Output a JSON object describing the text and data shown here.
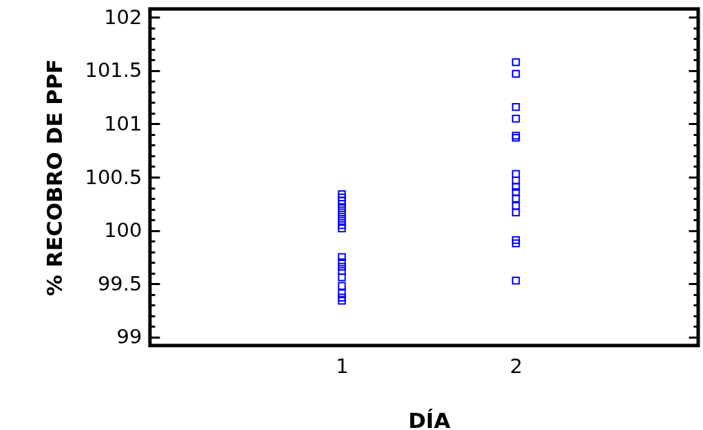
{
  "chart_data": {
    "type": "scatter",
    "xlabel": "DÍA",
    "ylabel": "% RECOBRO DE PPF",
    "categories": [
      "1",
      "2"
    ],
    "series": [
      {
        "color": "#0000ff",
        "x": [
          "1",
          "1",
          "1",
          "1",
          "1",
          "1",
          "1",
          "1",
          "1",
          "1",
          "1",
          "1",
          "1",
          "1",
          "1",
          "1",
          "1",
          "1",
          "1"
        ],
        "values": [
          100.34,
          100.31,
          100.28,
          100.25,
          100.21,
          100.17,
          100.13,
          100.09,
          100.05,
          100.02,
          99.75,
          99.7,
          99.66,
          99.62,
          99.56,
          99.48,
          99.41,
          99.37,
          99.34
        ]
      },
      {
        "color": "#0000ff",
        "x": [
          "2",
          "2",
          "2",
          "2",
          "2",
          "2",
          "2",
          "2",
          "2",
          "2",
          "2",
          "2",
          "2",
          "2",
          "2",
          "2"
        ],
        "values": [
          101.58,
          101.47,
          101.16,
          101.05,
          100.89,
          100.87,
          100.53,
          100.47,
          100.41,
          100.36,
          100.3,
          100.23,
          100.17,
          99.91,
          99.88,
          99.53
        ]
      }
    ],
    "ylim": [
      98.92,
      102.08
    ],
    "yticks": [
      99,
      {
        "value": 99.1,
        "label": null
      },
      {
        "value": 99.2,
        "label": null
      },
      {
        "value": 99.3,
        "label": null
      },
      {
        "value": 99.4,
        "label": null
      },
      99.5,
      {
        "value": 99.6,
        "label": null
      },
      {
        "value": 99.7,
        "label": null
      },
      {
        "value": 99.8,
        "label": null
      },
      {
        "value": 99.9,
        "label": null
      },
      100,
      {
        "value": 100.1,
        "label": null
      },
      {
        "value": 100.2,
        "label": null
      },
      {
        "value": 100.3,
        "label": null
      },
      {
        "value": 100.4,
        "label": null
      },
      100.5,
      {
        "value": 100.6,
        "label": null
      },
      {
        "value": 100.7,
        "label": null
      },
      {
        "value": 100.8,
        "label": null
      },
      {
        "value": 100.9,
        "label": null
      },
      101,
      {
        "value": 101.1,
        "label": null
      },
      {
        "value": 101.2,
        "label": null
      },
      {
        "value": 101.3,
        "label": null
      },
      {
        "value": 101.4,
        "label": null
      },
      101.5,
      {
        "value": 101.6,
        "label": null
      },
      {
        "value": 101.7,
        "label": null
      },
      {
        "value": 101.8,
        "label": null
      },
      {
        "value": 101.9,
        "label": null
      },
      102
    ],
    "marker": "square",
    "grid": false
  }
}
